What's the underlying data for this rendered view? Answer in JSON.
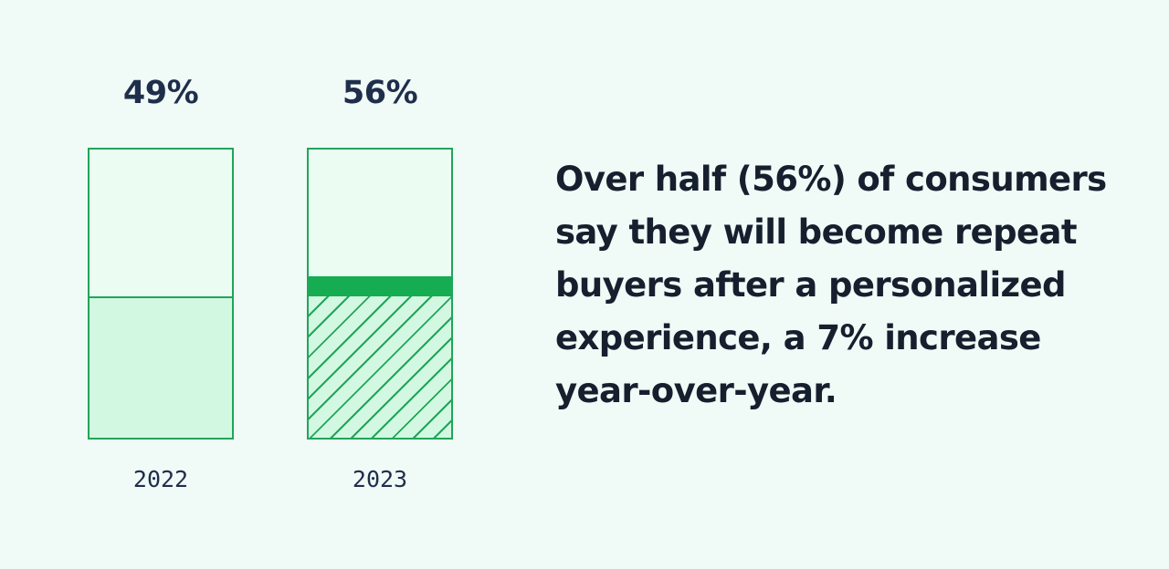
{
  "chart_data": {
    "type": "bar",
    "title": "",
    "xlabel": "",
    "ylabel": "",
    "ylim": [
      0,
      100
    ],
    "categories": [
      "2022",
      "2023"
    ],
    "values": [
      49,
      56
    ],
    "value_labels": [
      "49%",
      "56%"
    ],
    "annotations": [
      {
        "category": "2023",
        "segment": "increase",
        "value": 7,
        "note": "solid band marks 7% increase over 2022"
      }
    ],
    "grid": false,
    "legend": null
  },
  "bars": [
    {
      "year": "2022",
      "label": "49%",
      "value": 49
    },
    {
      "year": "2023",
      "label": "56%",
      "value": 56,
      "previous": 49,
      "increase": 7
    }
  ],
  "caption": "Over half (56%) of consumers say they will become repeat buyers after a personalized experience, a 7% increase year-over-year.",
  "colors": {
    "background": "#f0faf6",
    "bar_outline": "#21a55a",
    "bar_empty": "#ebfcf3",
    "bar_fill": "#d3f8e2",
    "increase_band": "#16ac52",
    "text_dark": "#1f2e4b"
  }
}
